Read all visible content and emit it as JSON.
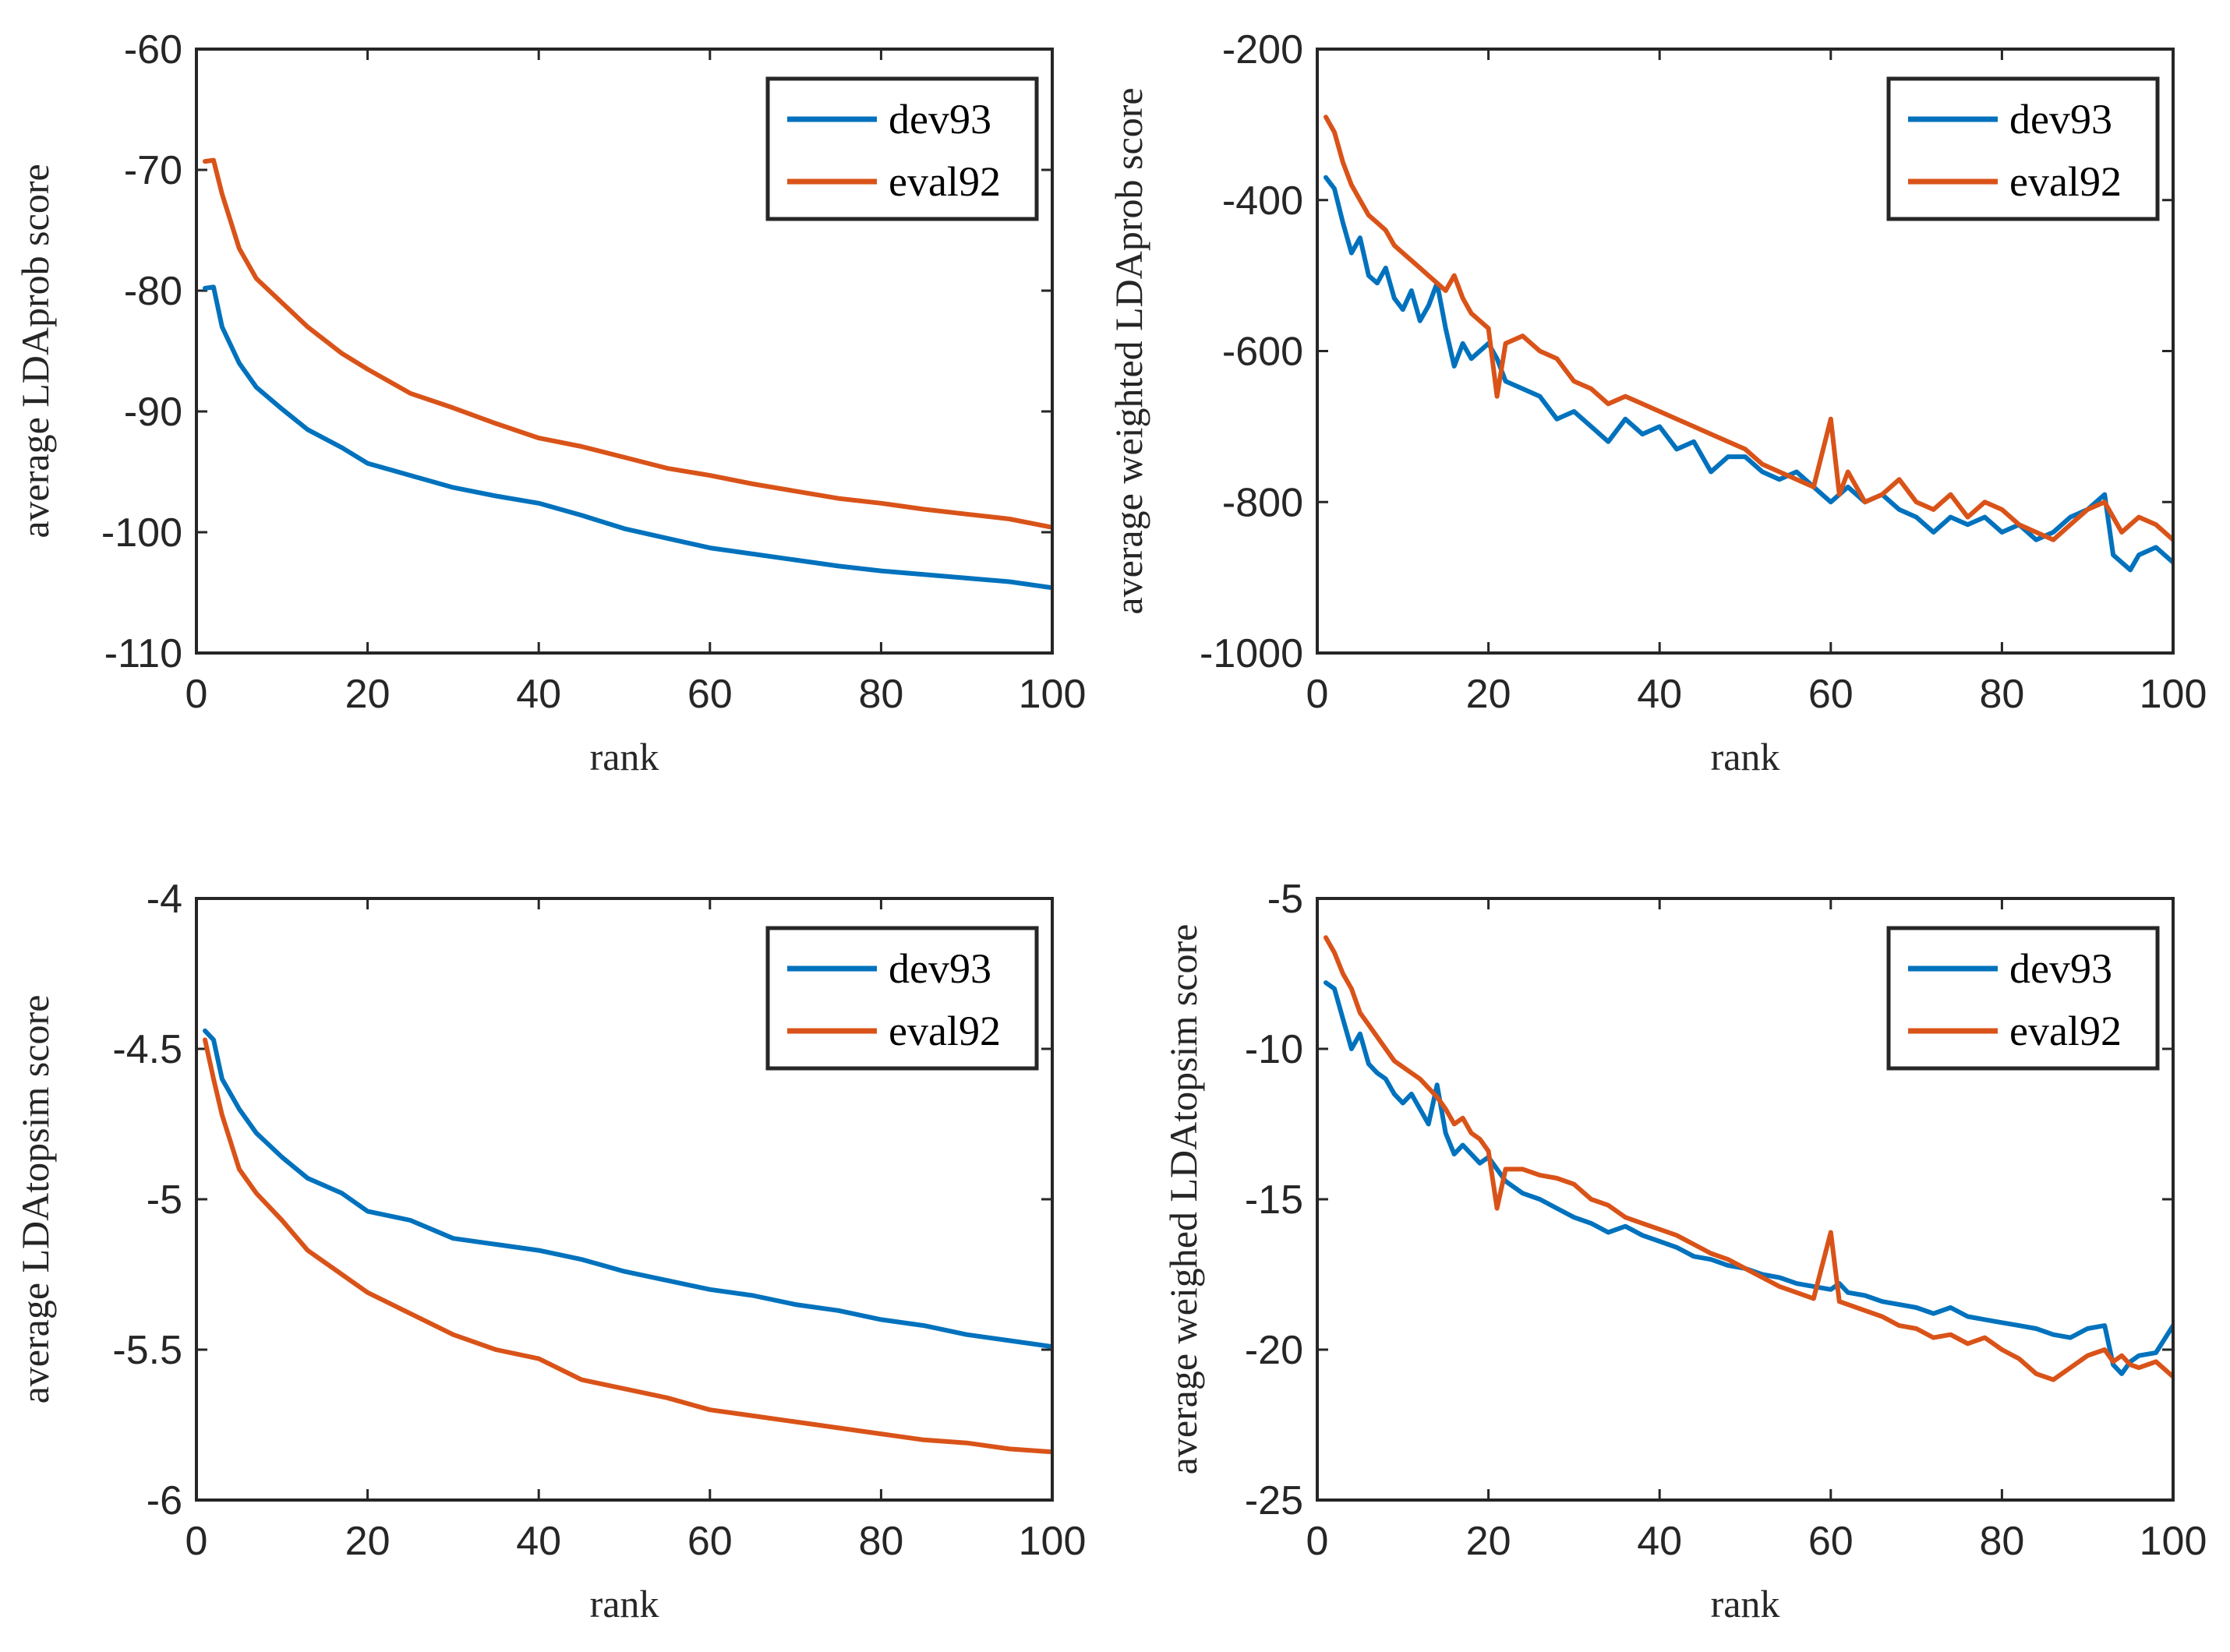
{
  "chart_data": [
    {
      "type": "line",
      "xlabel": "rank",
      "ylabel": "average LDAprob score",
      "xlim": [
        0,
        100
      ],
      "ylim": [
        -110,
        -60
      ],
      "xticks": [
        "0",
        "20",
        "40",
        "60",
        "80",
        "100"
      ],
      "yticks": [
        "-60",
        "-70",
        "-80",
        "-90",
        "-100",
        "-110"
      ],
      "legend": "top-right",
      "x": [
        1,
        2,
        3,
        5,
        7,
        10,
        13,
        17,
        20,
        25,
        30,
        35,
        40,
        45,
        50,
        55,
        60,
        65,
        70,
        75,
        80,
        85,
        90,
        95,
        100
      ],
      "series": [
        {
          "name": "dev93",
          "color": "#0072BD",
          "values": [
            -79.8,
            -79.7,
            -83,
            -86,
            -88,
            -89.8,
            -91.5,
            -93,
            -94.3,
            -95.3,
            -96.3,
            -97,
            -97.6,
            -98.6,
            -99.7,
            -100.5,
            -101.3,
            -101.8,
            -102.3,
            -102.8,
            -103.2,
            -103.5,
            -103.8,
            -104.1,
            -104.6
          ]
        },
        {
          "name": "eval92",
          "color": "#D95319",
          "values": [
            -69.3,
            -69.2,
            -72,
            -76.5,
            -79,
            -81,
            -83,
            -85.2,
            -86.5,
            -88.5,
            -89.7,
            -91,
            -92.2,
            -92.9,
            -93.8,
            -94.7,
            -95.3,
            -96,
            -96.6,
            -97.2,
            -97.6,
            -98.1,
            -98.5,
            -98.9,
            -99.6
          ]
        }
      ]
    },
    {
      "type": "line",
      "xlabel": "rank",
      "ylabel": "average weighted LDAprob score",
      "xlim": [
        0,
        100
      ],
      "ylim": [
        -1000,
        -200
      ],
      "xticks": [
        "0",
        "20",
        "40",
        "60",
        "80",
        "100"
      ],
      "yticks": [
        "-200",
        "-400",
        "-600",
        "-800",
        "-1000"
      ],
      "legend": "top-right",
      "x": [
        1,
        2,
        3,
        4,
        5,
        6,
        7,
        8,
        9,
        10,
        11,
        12,
        13,
        14,
        15,
        16,
        17,
        18,
        19,
        20,
        21,
        22,
        24,
        26,
        28,
        30,
        32,
        34,
        36,
        38,
        40,
        42,
        44,
        46,
        48,
        50,
        52,
        54,
        56,
        58,
        60,
        61,
        62,
        64,
        66,
        68,
        70,
        72,
        74,
        76,
        78,
        80,
        82,
        84,
        86,
        88,
        90,
        92,
        93,
        94,
        95,
        96,
        98,
        100
      ],
      "series": [
        {
          "name": "dev93",
          "color": "#0072BD",
          "values": [
            -370,
            -385,
            -430,
            -470,
            -450,
            -500,
            -510,
            -490,
            -530,
            -545,
            -520,
            -560,
            -540,
            -510,
            -570,
            -620,
            -590,
            -610,
            -600,
            -590,
            -610,
            -640,
            -650,
            -660,
            -690,
            -680,
            -700,
            -720,
            -690,
            -710,
            -700,
            -730,
            -720,
            -760,
            -740,
            -740,
            -760,
            -770,
            -760,
            -780,
            -800,
            -790,
            -780,
            -800,
            -790,
            -810,
            -820,
            -840,
            -820,
            -830,
            -820,
            -840,
            -830,
            -850,
            -840,
            -820,
            -810,
            -790,
            -870,
            -880,
            -890,
            -870,
            -860,
            -880
          ]
        },
        {
          "name": "eval92",
          "color": "#D95319",
          "values": [
            -290,
            -310,
            -350,
            -380,
            -400,
            -420,
            -430,
            -440,
            -460,
            -470,
            -480,
            -490,
            -500,
            -510,
            -520,
            -500,
            -530,
            -550,
            -560,
            -570,
            -660,
            -590,
            -580,
            -600,
            -610,
            -640,
            -650,
            -670,
            -660,
            -670,
            -680,
            -690,
            -700,
            -710,
            -720,
            -730,
            -750,
            -760,
            -770,
            -780,
            -690,
            -790,
            -760,
            -800,
            -790,
            -770,
            -800,
            -810,
            -790,
            -820,
            -800,
            -810,
            -830,
            -840,
            -850,
            -830,
            -810,
            -800,
            -820,
            -840,
            -830,
            -820,
            -830,
            -850
          ]
        }
      ]
    },
    {
      "type": "line",
      "xlabel": "rank",
      "ylabel": "average LDAtopsim score",
      "xlim": [
        0,
        100
      ],
      "ylim": [
        -6,
        -4
      ],
      "xticks": [
        "0",
        "20",
        "40",
        "60",
        "80",
        "100"
      ],
      "yticks": [
        "-4",
        "-4.5",
        "-5",
        "-5.5",
        "-6"
      ],
      "legend": "top-right",
      "x": [
        1,
        2,
        3,
        5,
        7,
        10,
        13,
        17,
        20,
        25,
        30,
        35,
        40,
        45,
        50,
        55,
        60,
        65,
        70,
        75,
        80,
        85,
        90,
        95,
        100
      ],
      "series": [
        {
          "name": "dev93",
          "color": "#0072BD",
          "values": [
            -4.44,
            -4.47,
            -4.6,
            -4.7,
            -4.78,
            -4.86,
            -4.93,
            -4.98,
            -5.04,
            -5.07,
            -5.13,
            -5.15,
            -5.17,
            -5.2,
            -5.24,
            -5.27,
            -5.3,
            -5.32,
            -5.35,
            -5.37,
            -5.4,
            -5.42,
            -5.45,
            -5.47,
            -5.49
          ]
        },
        {
          "name": "eval92",
          "color": "#D95319",
          "values": [
            -4.47,
            -4.6,
            -4.72,
            -4.9,
            -4.98,
            -5.07,
            -5.17,
            -5.25,
            -5.31,
            -5.38,
            -5.45,
            -5.5,
            -5.53,
            -5.6,
            -5.63,
            -5.66,
            -5.7,
            -5.72,
            -5.74,
            -5.76,
            -5.78,
            -5.8,
            -5.81,
            -5.83,
            -5.84
          ]
        }
      ]
    },
    {
      "type": "line",
      "xlabel": "rank",
      "ylabel": "average weighed LDAtopsim score",
      "xlim": [
        0,
        100
      ],
      "ylim": [
        -25,
        -5
      ],
      "xticks": [
        "0",
        "20",
        "40",
        "60",
        "80",
        "100"
      ],
      "yticks": [
        "-5",
        "-10",
        "-15",
        "-20",
        "-25"
      ],
      "legend": "top-right",
      "x": [
        1,
        2,
        3,
        4,
        5,
        6,
        7,
        8,
        9,
        10,
        11,
        12,
        13,
        14,
        15,
        16,
        17,
        18,
        19,
        20,
        21,
        22,
        24,
        26,
        28,
        30,
        32,
        34,
        36,
        38,
        40,
        42,
        44,
        46,
        48,
        50,
        52,
        54,
        56,
        58,
        60,
        61,
        62,
        64,
        66,
        68,
        70,
        72,
        74,
        76,
        78,
        80,
        82,
        84,
        86,
        88,
        90,
        92,
        93,
        94,
        95,
        96,
        98,
        100
      ],
      "series": [
        {
          "name": "dev93",
          "color": "#0072BD",
          "values": [
            -7.8,
            -8,
            -9,
            -10,
            -9.5,
            -10.5,
            -10.8,
            -11,
            -11.5,
            -11.8,
            -11.5,
            -12,
            -12.5,
            -11.2,
            -12.8,
            -13.5,
            -13.2,
            -13.5,
            -13.8,
            -13.6,
            -14,
            -14.4,
            -14.8,
            -15,
            -15.3,
            -15.6,
            -15.8,
            -16.1,
            -15.9,
            -16.2,
            -16.4,
            -16.6,
            -16.9,
            -17,
            -17.2,
            -17.3,
            -17.5,
            -17.6,
            -17.8,
            -17.9,
            -18,
            -17.8,
            -18.1,
            -18.2,
            -18.4,
            -18.5,
            -18.6,
            -18.8,
            -18.6,
            -18.9,
            -19,
            -19.1,
            -19.2,
            -19.3,
            -19.5,
            -19.6,
            -19.3,
            -19.2,
            -20.5,
            -20.8,
            -20.4,
            -20.2,
            -20.1,
            -19.2
          ]
        },
        {
          "name": "eval92",
          "color": "#D95319",
          "values": [
            -6.3,
            -6.8,
            -7.5,
            -8,
            -8.8,
            -9.2,
            -9.6,
            -10,
            -10.4,
            -10.6,
            -10.8,
            -11,
            -11.3,
            -11.6,
            -12,
            -12.5,
            -12.3,
            -12.8,
            -13,
            -13.4,
            -15.3,
            -14,
            -14,
            -14.2,
            -14.3,
            -14.5,
            -15,
            -15.2,
            -15.6,
            -15.8,
            -16,
            -16.2,
            -16.5,
            -16.8,
            -17,
            -17.3,
            -17.6,
            -17.9,
            -18.1,
            -18.3,
            -16.1,
            -18.4,
            -18.5,
            -18.7,
            -18.9,
            -19.2,
            -19.3,
            -19.6,
            -19.5,
            -19.8,
            -19.6,
            -20,
            -20.3,
            -20.8,
            -21,
            -20.6,
            -20.2,
            -20,
            -20.4,
            -20.2,
            -20.5,
            -20.6,
            -20.4,
            -20.9
          ]
        }
      ]
    }
  ]
}
